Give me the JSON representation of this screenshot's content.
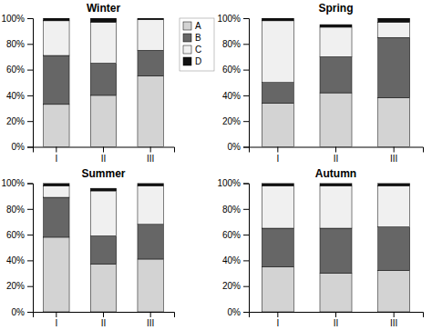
{
  "chart_data": [
    {
      "type": "bar",
      "title": "Winter",
      "stacked": true,
      "grid": false,
      "legend": "upper right",
      "categories": [
        "I",
        "II",
        "III"
      ],
      "series": [
        {
          "name": "A",
          "color": "#d3d3d3",
          "values": [
            33,
            40,
            55
          ]
        },
        {
          "name": "B",
          "color": "#666666",
          "values": [
            38,
            25,
            20
          ]
        },
        {
          "name": "C",
          "color": "#f0f0f0",
          "values": [
            27,
            32,
            24
          ]
        },
        {
          "name": "D",
          "color": "#111111",
          "values": [
            2,
            3,
            1
          ]
        }
      ],
      "ylim": [
        0,
        100
      ],
      "yticks": [
        {
          "value": 0,
          "label": "0%"
        },
        {
          "value": 20,
          "label": "20%"
        },
        {
          "value": 40,
          "label": "40%"
        },
        {
          "value": 60,
          "label": "60%"
        },
        {
          "value": 80,
          "label": "80%"
        },
        {
          "value": 100,
          "label": "100%"
        }
      ]
    },
    {
      "type": "bar",
      "title": "Spring",
      "stacked": true,
      "grid": false,
      "categories": [
        "I",
        "II",
        "III"
      ],
      "series": [
        {
          "name": "A",
          "color": "#d3d3d3",
          "values": [
            34,
            42,
            38
          ]
        },
        {
          "name": "B",
          "color": "#666666",
          "values": [
            16,
            28,
            47
          ]
        },
        {
          "name": "C",
          "color": "#f0f0f0",
          "values": [
            48,
            23,
            12
          ]
        },
        {
          "name": "D",
          "color": "#111111",
          "values": [
            2,
            2,
            3
          ]
        }
      ],
      "ylim": [
        0,
        100
      ],
      "yticks": [
        {
          "value": 0,
          "label": "0%"
        },
        {
          "value": 20,
          "label": "20%"
        },
        {
          "value": 40,
          "label": "40%"
        },
        {
          "value": 60,
          "label": "60%"
        },
        {
          "value": 80,
          "label": "80%"
        },
        {
          "value": 100,
          "label": "100%"
        }
      ]
    },
    {
      "type": "bar",
      "title": "Summer",
      "stacked": true,
      "grid": false,
      "categories": [
        "I",
        "II",
        "III"
      ],
      "series": [
        {
          "name": "A",
          "color": "#d3d3d3",
          "values": [
            58,
            37,
            41
          ]
        },
        {
          "name": "B",
          "color": "#666666",
          "values": [
            31,
            22,
            27
          ]
        },
        {
          "name": "C",
          "color": "#f0f0f0",
          "values": [
            9,
            35,
            30
          ]
        },
        {
          "name": "D",
          "color": "#111111",
          "values": [
            2,
            2,
            2
          ]
        }
      ],
      "ylim": [
        0,
        100
      ],
      "yticks": [
        {
          "value": 0,
          "label": "0%"
        },
        {
          "value": 20,
          "label": "20%"
        },
        {
          "value": 40,
          "label": "40%"
        },
        {
          "value": 60,
          "label": "60%"
        },
        {
          "value": 80,
          "label": "80%"
        },
        {
          "value": 100,
          "label": "100%"
        }
      ]
    },
    {
      "type": "bar",
      "title": "Autumn",
      "stacked": true,
      "grid": false,
      "categories": [
        "I",
        "II",
        "III"
      ],
      "series": [
        {
          "name": "A",
          "color": "#d3d3d3",
          "values": [
            35,
            30,
            32
          ]
        },
        {
          "name": "B",
          "color": "#666666",
          "values": [
            30,
            35,
            34
          ]
        },
        {
          "name": "C",
          "color": "#f0f0f0",
          "values": [
            33,
            33,
            32
          ]
        },
        {
          "name": "D",
          "color": "#111111",
          "values": [
            2,
            2,
            2
          ]
        }
      ],
      "ylim": [
        0,
        100
      ],
      "yticks": [
        {
          "value": 0,
          "label": "0%"
        },
        {
          "value": 20,
          "label": "20%"
        },
        {
          "value": 40,
          "label": "40%"
        },
        {
          "value": 60,
          "label": "60%"
        },
        {
          "value": 80,
          "label": "80%"
        },
        {
          "value": 100,
          "label": "100%"
        }
      ]
    }
  ]
}
